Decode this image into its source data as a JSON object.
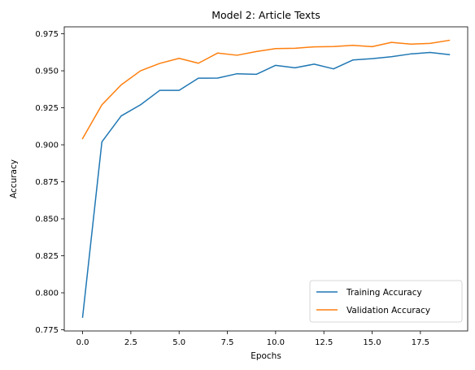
{
  "chart_data": {
    "type": "line",
    "title": "Model 2: Article Texts",
    "xlabel": "Epochs",
    "ylabel": "Accuracy",
    "xlim": [
      -0.95,
      19.95
    ],
    "ylim": [
      0.7742,
      0.9797
    ],
    "xticks": [
      0.0,
      2.5,
      5.0,
      7.5,
      10.0,
      12.5,
      15.0,
      17.5
    ],
    "xtick_labels": [
      "0.0",
      "2.5",
      "5.0",
      "7.5",
      "10.0",
      "12.5",
      "15.0",
      "17.5"
    ],
    "yticks": [
      0.775,
      0.8,
      0.825,
      0.85,
      0.875,
      0.9,
      0.925,
      0.95,
      0.975
    ],
    "ytick_labels": [
      "0.775",
      "0.800",
      "0.825",
      "0.850",
      "0.875",
      "0.900",
      "0.925",
      "0.950",
      "0.975"
    ],
    "grid": false,
    "legend_position": "lower-right",
    "x": [
      0,
      1,
      2,
      3,
      4,
      5,
      6,
      7,
      8,
      9,
      10,
      11,
      12,
      13,
      14,
      15,
      16,
      17,
      18,
      19
    ],
    "series": [
      {
        "name": "Training Accuracy",
        "color": "#1f77b4",
        "values": [
          0.7835,
          0.902,
          0.9195,
          0.927,
          0.9368,
          0.9368,
          0.945,
          0.9451,
          0.948,
          0.9476,
          0.9537,
          0.952,
          0.9545,
          0.9513,
          0.9573,
          0.9582,
          0.9595,
          0.9614,
          0.9624,
          0.9609
        ]
      },
      {
        "name": "Validation Accuracy",
        "color": "#ff7f0e",
        "values": [
          0.9042,
          0.927,
          0.9405,
          0.95,
          0.955,
          0.9584,
          0.9551,
          0.962,
          0.9605,
          0.963,
          0.965,
          0.9652,
          0.9662,
          0.9664,
          0.9672,
          0.9663,
          0.9692,
          0.968,
          0.9685,
          0.9706
        ]
      }
    ]
  }
}
